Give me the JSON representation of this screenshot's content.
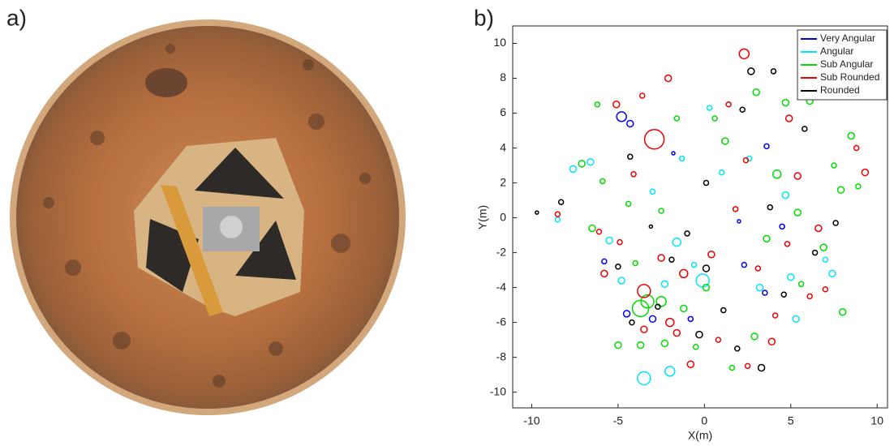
{
  "figure": {
    "panel_labels": [
      "a)",
      "b)"
    ]
  },
  "chart_data": {
    "type": "scatter",
    "xlabel": "X(m)",
    "ylabel": "Y(m)",
    "xlim": [
      -11.1,
      10.6
    ],
    "ylim": [
      -10.9,
      11
    ],
    "xticks": [
      -10,
      -5,
      0,
      5,
      10
    ],
    "yticks": [
      -10,
      -8,
      -6,
      -4,
      -2,
      0,
      2,
      4,
      6,
      8,
      10
    ],
    "grid": false,
    "legend": "upper right",
    "series": [
      {
        "name": "Very Angular",
        "color": "#0000ff",
        "x": [
          -4.8,
          -4.3,
          -3.0,
          -4.5,
          2.3,
          3.5,
          -0.8,
          -5.8,
          4.5,
          2,
          -1.8,
          3.6
        ],
        "y": [
          5.8,
          5.4,
          -5.8,
          -5.5,
          -2.7,
          -4.3,
          -5.8,
          -2.5,
          -0.5,
          -0.2,
          3.7,
          4.1
        ],
        "sizes": [
          3,
          2,
          2,
          2,
          1.5,
          1.5,
          1.5,
          1.5,
          1.5,
          1,
          1,
          1.5
        ]
      },
      {
        "name": "Angular",
        "color": "#00e5ff",
        "x": [
          -3.5,
          -2.0,
          -8.5,
          -0.1,
          -1.6,
          5.3,
          7.4,
          -5.5,
          -6.6,
          -7.6,
          -1.3,
          0.3,
          3.2,
          -2.3,
          1,
          5,
          -4.8,
          2.6,
          4.7,
          -3,
          -0.6,
          7
        ],
        "y": [
          -9.2,
          -8.8,
          -0.1,
          -3.6,
          -1.4,
          -5.8,
          -3.2,
          -1.3,
          3.2,
          2.8,
          3.4,
          6.3,
          -4.0,
          -3.8,
          2.6,
          -3.4,
          -3.6,
          3.4,
          1.3,
          1.5,
          -2.7,
          -2.4
        ],
        "sizes": [
          4,
          3,
          1.5,
          4,
          2.5,
          2,
          2,
          2,
          2,
          2,
          1.5,
          1.5,
          2,
          2,
          1.5,
          2,
          2,
          1.5,
          2,
          1.5,
          1.5,
          1.5
        ]
      },
      {
        "name": "Sub Angular",
        "color": "#00dd00",
        "x": [
          -3.7,
          -3.3,
          -2.5,
          8,
          -6.5,
          -5.0,
          -3.7,
          0.1,
          4.7,
          6.1,
          8.5,
          7.9,
          -7.1,
          -6.2,
          1.2,
          4.2,
          5.4,
          -1.2,
          2.9,
          -2.3,
          -4.4,
          -1.6,
          3.0,
          6.9,
          -4.0,
          3.6,
          -0.5,
          1.6,
          5.6,
          8.9,
          7.5,
          -2.5,
          -5.9,
          0.6
        ],
        "y": [
          -5.2,
          -4.8,
          -4.8,
          -5.4,
          -0.6,
          -7.3,
          -7.3,
          -4.0,
          6.6,
          6.7,
          4.7,
          1.6,
          3.1,
          6.5,
          4.4,
          2.5,
          0.3,
          -5.2,
          -6.8,
          -7.2,
          0.8,
          5.7,
          7.2,
          -1.7,
          -2.6,
          -1.2,
          -7.4,
          -8.6,
          -3.8,
          1.8,
          3.0,
          0.4,
          2.1,
          5.7
        ],
        "sizes": [
          5,
          4,
          3,
          2,
          2,
          2,
          2,
          2,
          2,
          2,
          2,
          2,
          2,
          1.5,
          2,
          2.5,
          2,
          2,
          2,
          2,
          1.5,
          1.5,
          2,
          2,
          1.5,
          2,
          1.5,
          1.5,
          1.5,
          1.5,
          1.5,
          1.5,
          1.5,
          1.5
        ]
      },
      {
        "name": "Sub Rounded",
        "color": "#ee0000",
        "x": [
          -2.9,
          2.3,
          -3.5,
          -1.2,
          -2.1,
          -5.1,
          4.9,
          6.6,
          9.3,
          8.8,
          -8.5,
          -5.8,
          -2.0,
          -3.5,
          -0.8,
          3.9,
          -2.5,
          0.4,
          2.4,
          5.4,
          6.1,
          -4.1,
          -3.6,
          1.8,
          3.1,
          -1.6,
          0.8,
          4.1,
          -4.9,
          1.4,
          7,
          -6.1,
          4.8,
          2.5
        ],
        "y": [
          4.5,
          9.4,
          -4.2,
          -3.2,
          8.0,
          6.5,
          5.7,
          -0.6,
          2.6,
          4.0,
          0.2,
          -3.2,
          -6.0,
          -6.4,
          -8.4,
          -7.1,
          -2.3,
          -2.1,
          3.3,
          2.4,
          -4.5,
          2.5,
          7.0,
          0.5,
          -2.9,
          -6.6,
          -7.0,
          -5.6,
          -1.4,
          6.5,
          -4.1,
          -0.8,
          -1.5,
          -8.5
        ],
        "sizes": [
          6,
          3,
          4,
          2.5,
          2,
          2,
          2,
          2,
          2,
          1.5,
          1.5,
          2,
          2.5,
          2,
          2,
          2,
          2,
          2,
          1.5,
          2,
          1.5,
          1.5,
          1.5,
          1.5,
          1.5,
          2,
          1.5,
          1.5,
          1.5,
          1.5,
          1.5,
          1.5,
          1.5,
          1.5
        ]
      },
      {
        "name": "Rounded",
        "color": "#000000",
        "x": [
          -9.7,
          -8.3,
          2.7,
          4,
          -4.3,
          0.1,
          -1.9,
          3.3,
          -0.3,
          5.8,
          -5.0,
          -2.7,
          3.8,
          1.1,
          -4.2,
          6.4,
          4.6,
          0.1,
          -3.1,
          2.2,
          7.6,
          -1.0,
          1.9
        ],
        "y": [
          0.3,
          0.9,
          8.4,
          8.4,
          3.5,
          -2.9,
          -2.4,
          -8.6,
          -6.7,
          5.1,
          -2.8,
          -5.1,
          0.6,
          -5.3,
          -6.0,
          -2.0,
          -4.4,
          2.0,
          -0.5,
          6.2,
          -0.3,
          -0.9,
          -7.5
        ],
        "sizes": [
          1,
          1.5,
          2,
          1.5,
          1.5,
          2,
          1.5,
          2,
          2,
          1.5,
          1.5,
          1.5,
          1.5,
          1.5,
          1.5,
          1.5,
          1.5,
          1.5,
          1,
          1.5,
          1.5,
          1.5,
          1.5
        ]
      }
    ]
  }
}
